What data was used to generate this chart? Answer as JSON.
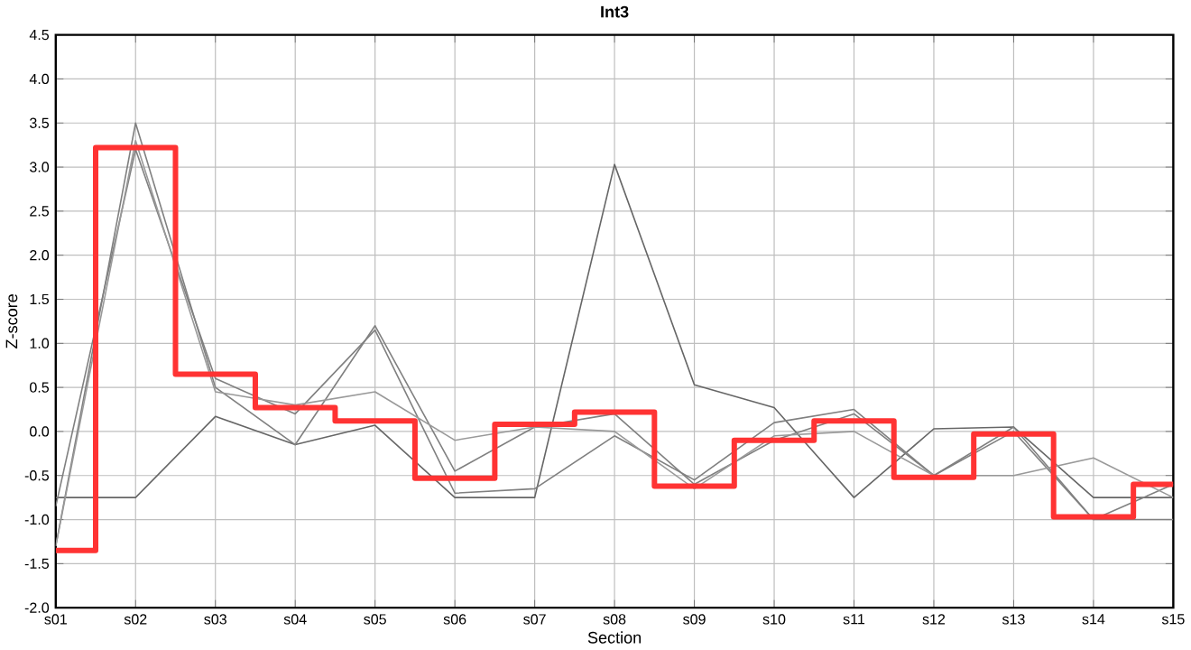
{
  "chart_data": {
    "type": "line",
    "title": "Int3",
    "xlabel": "Section",
    "ylabel": "Z-score",
    "categories": [
      "s01",
      "s02",
      "s03",
      "s04",
      "s05",
      "s06",
      "s07",
      "s08",
      "s09",
      "s10",
      "s11",
      "s12",
      "s13",
      "s14",
      "s15"
    ],
    "ylim": [
      -2.0,
      4.5
    ],
    "yticks": [
      {
        "value": -2.0,
        "label": "-2.0"
      },
      {
        "value": -1.5,
        "label": "-1.5"
      },
      {
        "value": -1.0,
        "label": "-1.0"
      },
      {
        "value": -0.5,
        "label": "-0.5"
      },
      {
        "value": 0,
        "label": "0.0"
      },
      {
        "value": 0.5,
        "label": "0.5"
      },
      {
        "value": 1.0,
        "label": "1.0"
      },
      {
        "value": 1.5,
        "label": "1.5"
      },
      {
        "value": 2.0,
        "label": "2.0"
      },
      {
        "value": 2.5,
        "label": "2.5"
      },
      {
        "value": 3.0,
        "label": "3.0"
      },
      {
        "value": 3.5,
        "label": "3.5"
      },
      {
        "value": 4.0,
        "label": "4.0"
      },
      {
        "value": 4.5,
        "label": "4.5"
      }
    ],
    "grid": true,
    "marker": "none",
    "series": [
      {
        "color": "#666666",
        "values": [
          -0.75,
          -0.75,
          0.17,
          -0.15,
          0.07,
          -0.75,
          -0.75,
          3.03,
          0.53,
          0.27,
          -0.75,
          0.03,
          0.05,
          -0.75,
          -0.75
        ]
      },
      {
        "color": "#808080",
        "values": [
          -1.3,
          3.5,
          0.5,
          -0.15,
          1.2,
          -0.45,
          0.05,
          0.2,
          -0.6,
          -0.1,
          0.2,
          -0.5,
          0.0,
          -1.0,
          -0.6
        ]
      },
      {
        "color": "#808080",
        "values": [
          -0.85,
          3.2,
          0.6,
          0.2,
          1.15,
          -0.7,
          -0.65,
          -0.05,
          -0.55,
          0.1,
          0.25,
          -0.5,
          0.05,
          -1.0,
          -1.0
        ]
      },
      {
        "color": "#999999",
        "values": [
          -1.3,
          3.3,
          0.45,
          0.3,
          0.45,
          -0.1,
          0.05,
          0.0,
          -0.65,
          -0.05,
          0.0,
          -0.5,
          -0.5,
          -0.3,
          -0.75
        ]
      },
      {
        "type": "step",
        "color": "#ff3333",
        "values": [
          -1.35,
          3.22,
          0.65,
          0.27,
          0.12,
          -0.53,
          0.08,
          0.22,
          -0.62,
          -0.1,
          0.12,
          -0.52,
          -0.03,
          -0.97,
          -0.6
        ]
      }
    ]
  }
}
